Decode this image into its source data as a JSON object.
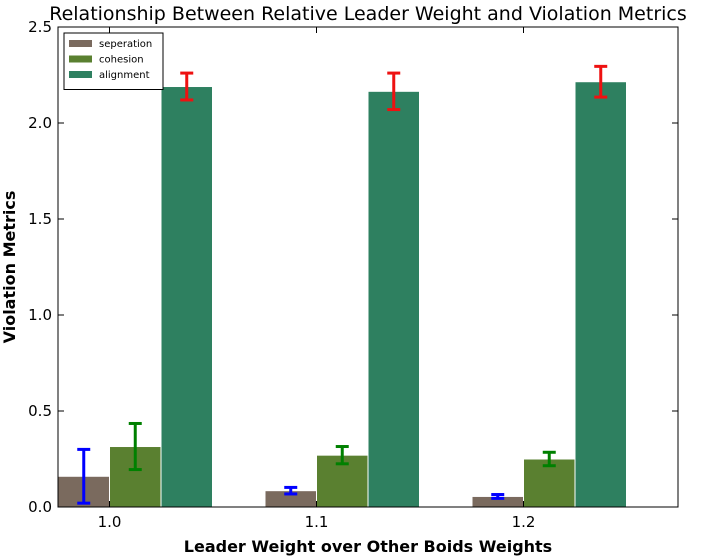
{
  "chart_data": {
    "type": "bar",
    "title": "Relationship Between Relative Leader Weight and Violation Metrics",
    "xlabel": "Leader Weight over Other Boids Weights",
    "ylabel": "Violation Metrics",
    "categories": [
      "1.0",
      "1.1",
      "1.2"
    ],
    "ylim": [
      0,
      2.5
    ],
    "yticks": [
      "0.0",
      "0.5",
      "1.0",
      "1.5",
      "2.0",
      "2.5"
    ],
    "grid": false,
    "legend_position": "top-left",
    "series": [
      {
        "name": "seperation",
        "color": "#7a6a5e",
        "error_color": "#0000ff",
        "values": [
          0.16,
          0.085,
          0.055
        ],
        "errors": [
          0.14,
          0.017,
          0.01
        ]
      },
      {
        "name": "cohesion",
        "color": "#5a8030",
        "error_color": "#008000",
        "values": [
          0.315,
          0.27,
          0.25
        ],
        "errors": [
          0.12,
          0.045,
          0.035
        ]
      },
      {
        "name": "alignment",
        "color": "#2e8060",
        "error_color": "#ee1111",
        "values": [
          2.19,
          2.165,
          2.215
        ],
        "errors": [
          0.07,
          0.095,
          0.08
        ]
      }
    ]
  }
}
